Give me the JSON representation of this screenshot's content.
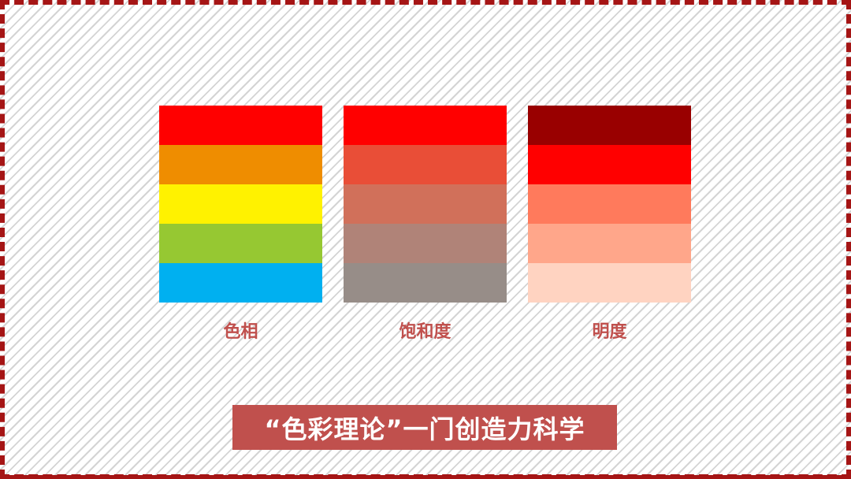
{
  "groups": [
    {
      "label": "色相",
      "swatches": [
        "#ff0000",
        "#ef8d00",
        "#fff200",
        "#96c832",
        "#00b0f0"
      ]
    },
    {
      "label": "饱和度",
      "swatches": [
        "#ff0000",
        "#e94e37",
        "#d1705a",
        "#b08378",
        "#978d88"
      ]
    },
    {
      "label": "明度",
      "swatches": [
        "#990000",
        "#ff0000",
        "#ff7a5c",
        "#ffa68a",
        "#ffd3c1"
      ]
    }
  ],
  "banner": {
    "text": "“色彩理论”一门创造力科学"
  },
  "colors": {
    "frame": "#a51515",
    "label": "#c0504d",
    "banner_bg": "#c0504d"
  }
}
